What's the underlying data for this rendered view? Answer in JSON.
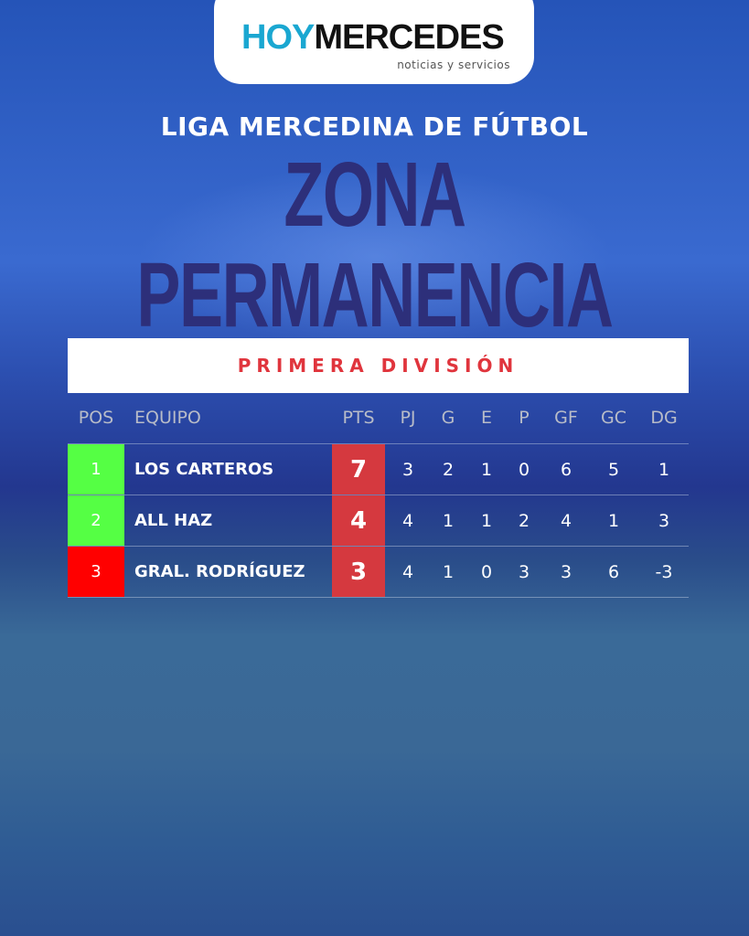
{
  "logo": {
    "hoy": "HOY",
    "mercedes": "MERCEDES",
    "tagline": "noticias y servicios"
  },
  "league": "LIGA MERCEDINA DE FÚTBOL",
  "title": "ZONA PERMANENCIA",
  "division": "PRIMERA DIVISIÓN",
  "colors": {
    "qualify": "#55ff44",
    "relegate": "#ff0000",
    "points": "#d5393f",
    "title": "#2d2f7a",
    "division": "#e0353d"
  },
  "headers": [
    "POS",
    "EQUIPO",
    "PTS",
    "PJ",
    "G",
    "E",
    "P",
    "GF",
    "GC",
    "DG"
  ],
  "rows": [
    {
      "pos": "1",
      "team": "LOS CARTEROS",
      "pts": "7",
      "pj": "3",
      "g": "2",
      "e": "1",
      "p": "0",
      "gf": "6",
      "gc": "5",
      "dg": "1",
      "status": "qualify"
    },
    {
      "pos": "2",
      "team": "ALL HAZ",
      "pts": "4",
      "pj": "4",
      "g": "1",
      "e": "1",
      "p": "2",
      "gf": "4",
      "gc": "1",
      "dg": "3",
      "status": "qualify"
    },
    {
      "pos": "3",
      "team": "GRAL. RODRÍGUEZ",
      "pts": "3",
      "pj": "4",
      "g": "1",
      "e": "0",
      "p": "3",
      "gf": "3",
      "gc": "6",
      "dg": "-3",
      "status": "relegate"
    }
  ]
}
